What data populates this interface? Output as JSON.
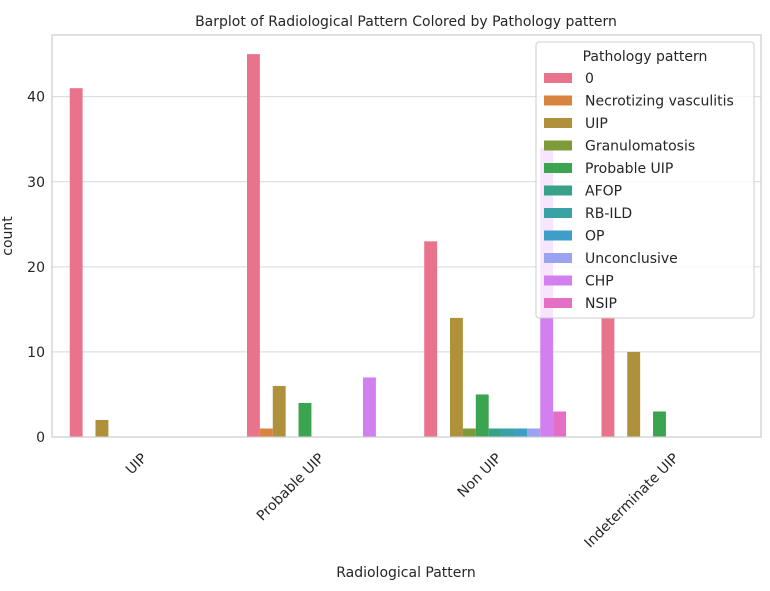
{
  "chart_data": {
    "type": "bar",
    "title": "Barplot of Radiological Pattern Colored by Pathology pattern",
    "xlabel": "Radiological Pattern",
    "ylabel": "count",
    "ylim": [
      0,
      47.25
    ],
    "yticks": [
      0,
      10,
      20,
      30,
      40
    ],
    "grid": true,
    "legend_title": "Pathology pattern",
    "legend_position": "top-right",
    "categories": [
      "UIP",
      "Probable UIP",
      "Non UIP",
      "Indeterminate UIP"
    ],
    "series": [
      {
        "name": "0",
        "color": "#e8738a",
        "values": [
          41,
          45,
          23,
          14
        ]
      },
      {
        "name": "Necrotizing vasculitis",
        "color": "#d8843e",
        "values": [
          0,
          1,
          0,
          0
        ]
      },
      {
        "name": "UIP",
        "color": "#ae913a",
        "values": [
          2,
          6,
          14,
          10
        ]
      },
      {
        "name": "Granulomatosis",
        "color": "#7d9b38",
        "values": [
          0,
          0,
          1,
          0
        ]
      },
      {
        "name": "Probable UIP",
        "color": "#3ba451",
        "values": [
          0,
          4,
          5,
          3
        ]
      },
      {
        "name": "AFOP",
        "color": "#38a18a",
        "values": [
          0,
          0,
          1,
          0
        ]
      },
      {
        "name": "RB-ILD",
        "color": "#3aa2a6",
        "values": [
          0,
          0,
          1,
          0
        ]
      },
      {
        "name": "OP",
        "color": "#3f9ec7",
        "values": [
          0,
          0,
          1,
          0
        ]
      },
      {
        "name": "Unconclusive",
        "color": "#9aa3f0",
        "values": [
          0,
          0,
          1,
          0
        ]
      },
      {
        "name": "CHP",
        "color": "#d27ff0",
        "values": [
          0,
          7,
          34,
          0
        ]
      },
      {
        "name": "NSIP",
        "color": "#e56fc4",
        "values": [
          0,
          0,
          3,
          0
        ]
      }
    ]
  }
}
